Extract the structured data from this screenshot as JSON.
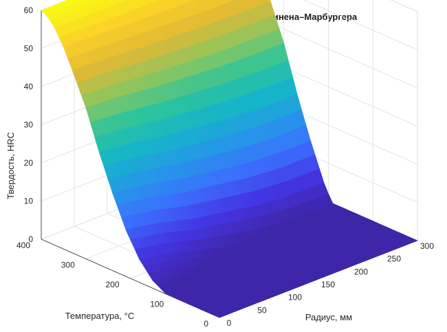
{
  "chart_data": {
    "type": "surface3d",
    "title": "3D график твёрдости по модели Коистинена–Марбургера",
    "xlabel": "Радиус, мм",
    "ylabel": "Температура, °C",
    "zlabel": "Твердость, HRC",
    "xlim": [
      0,
      300
    ],
    "ylim": [
      0,
      400
    ],
    "zlim": [
      0,
      60
    ],
    "xticks": [
      "0",
      "50",
      "100",
      "150",
      "200",
      "250",
      "300"
    ],
    "yticks": [
      "0",
      "100",
      "200",
      "300",
      "400"
    ],
    "zticks": [
      "0",
      "10",
      "20",
      "30",
      "40",
      "50",
      "60"
    ],
    "grid": true,
    "colormap": [
      "#3e26a8",
      "#4435e4",
      "#3b6ffd",
      "#2597e8",
      "#16b4c9",
      "#2ec49a",
      "#8ec55e",
      "#e1b934",
      "#fbd227",
      "#f9fb14"
    ],
    "temperature_profile": [
      {
        "T": 0,
        "hrc": 0
      },
      {
        "T": 80,
        "hrc": 0
      },
      {
        "T": 120,
        "hrc": 1
      },
      {
        "T": 150,
        "hrc": 3
      },
      {
        "T": 180,
        "hrc": 7
      },
      {
        "T": 210,
        "hrc": 13
      },
      {
        "T": 240,
        "hrc": 21
      },
      {
        "T": 270,
        "hrc": 30
      },
      {
        "T": 300,
        "hrc": 40
      },
      {
        "T": 330,
        "hrc": 48
      },
      {
        "T": 350,
        "hrc": 53
      },
      {
        "T": 370,
        "hrc": 57
      },
      {
        "T": 385,
        "hrc": 59
      },
      {
        "T": 400,
        "hrc": 60
      }
    ],
    "radius_profile": [
      {
        "r": 0,
        "hrc": 1
      },
      {
        "r": 50,
        "hrc": 3
      },
      {
        "r": 100,
        "hrc": 6
      },
      {
        "r": 150,
        "hrc": 8
      },
      {
        "r": 200,
        "hrc": 10
      },
      {
        "r": 250,
        "hrc": 11
      },
      {
        "r": 300,
        "hrc": 11
      }
    ]
  }
}
